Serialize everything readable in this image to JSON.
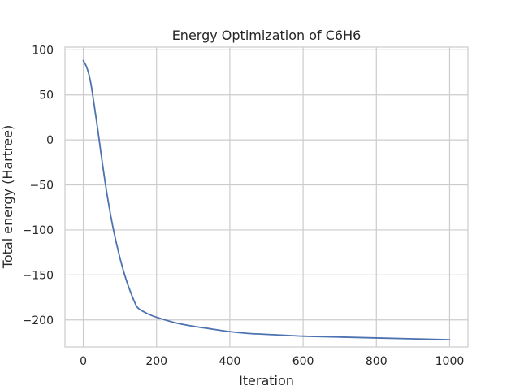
{
  "chart_data": {
    "type": "line",
    "title": "Energy Optimization of C6H6",
    "xlabel": "Iteration",
    "ylabel": "Total energy (Hartree)",
    "xlim": [
      -50,
      1050
    ],
    "ylim": [
      -230,
      103
    ],
    "xticks": [
      0,
      200,
      400,
      600,
      800,
      1000
    ],
    "xtick_labels": [
      "0",
      "200",
      "400",
      "600",
      "800",
      "1000"
    ],
    "yticks": [
      100,
      50,
      0,
      -50,
      -100,
      -150,
      -200
    ],
    "ytick_labels": [
      "100",
      "50",
      "0",
      "−50",
      "−100",
      "−150",
      "−200"
    ],
    "grid": true,
    "legend": "none",
    "series": [
      {
        "color": "#4c72b0",
        "x": [
          0,
          10,
          20,
          30,
          40,
          50,
          60,
          70,
          80,
          90,
          100,
          110,
          120,
          130,
          140,
          150,
          175,
          200,
          250,
          300,
          350,
          400,
          450,
          500,
          600,
          700,
          800,
          900,
          1000
        ],
        "values": [
          88,
          80,
          64,
          38,
          10,
          -20,
          -48,
          -73,
          -95,
          -114,
          -131,
          -146,
          -159,
          -170,
          -180,
          -187,
          -193,
          -197,
          -203,
          -207,
          -210,
          -213,
          -215,
          -216,
          -218,
          -219,
          -220,
          -221,
          -222
        ]
      }
    ]
  },
  "colors": {
    "grid": "#cccccc",
    "axes_edge": "#cccccc",
    "text": "#262626",
    "line": "#4c72b0"
  }
}
